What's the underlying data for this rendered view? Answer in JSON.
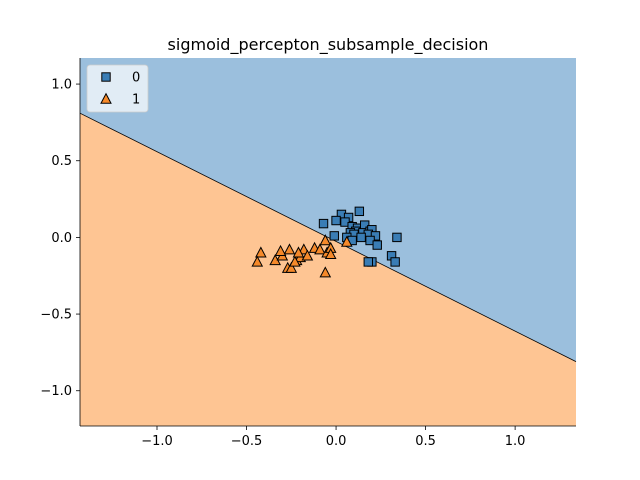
{
  "chart_data": {
    "type": "scatter",
    "title": "sigmoid_percepton_subsample_decision",
    "xlabel": "",
    "ylabel": "",
    "xlim": [
      -1.43,
      1.34
    ],
    "ylim": [
      -1.23,
      1.17
    ],
    "xticks": [
      -1.0,
      -0.5,
      0.0,
      0.5,
      1.0
    ],
    "xtick_labels": [
      "−1.0",
      "−0.5",
      "0.0",
      "0.5",
      "1.0"
    ],
    "yticks": [
      1.0,
      0.5,
      0.0,
      -0.5,
      -1.0
    ],
    "ytick_labels": [
      "1.0",
      "0.5",
      "0.0",
      "−0.5",
      "−1.0"
    ],
    "grid": false,
    "legend_position": "top-left",
    "decision_boundary": {
      "points": [
        [
          -1.43,
          0.81
        ],
        [
          1.34,
          -0.81
        ]
      ],
      "region_above_class": "0",
      "region_below_class": "1",
      "region_above_color": "#9bbfdd",
      "region_below_color": "#fec593"
    },
    "series": [
      {
        "name": "0",
        "marker": "square",
        "color": "#3a7db5",
        "points": [
          [
            -0.07,
            0.09
          ],
          [
            0.03,
            0.15
          ],
          [
            0.07,
            0.13
          ],
          [
            0.13,
            0.17
          ],
          [
            0.0,
            0.11
          ],
          [
            0.05,
            0.1
          ],
          [
            0.09,
            0.07
          ],
          [
            0.12,
            0.06
          ],
          [
            0.16,
            0.08
          ],
          [
            0.11,
            0.04
          ],
          [
            0.15,
            0.03
          ],
          [
            0.19,
            0.04
          ],
          [
            0.08,
            0.03
          ],
          [
            0.2,
            0.05
          ],
          [
            0.1,
            0.02
          ],
          [
            0.18,
            0.02
          ],
          [
            -0.01,
            0.01
          ],
          [
            0.06,
            0.0
          ],
          [
            0.14,
            0.0
          ],
          [
            0.22,
            0.01
          ],
          [
            0.09,
            -0.02
          ],
          [
            0.19,
            -0.02
          ],
          [
            0.23,
            -0.05
          ],
          [
            0.34,
            0.0
          ],
          [
            0.31,
            -0.12
          ],
          [
            0.33,
            -0.16
          ],
          [
            0.2,
            -0.16
          ],
          [
            0.18,
            -0.16
          ]
        ]
      },
      {
        "name": "1",
        "marker": "triangle",
        "color": "#f5892a",
        "points": [
          [
            -0.42,
            -0.1
          ],
          [
            -0.44,
            -0.16
          ],
          [
            -0.34,
            -0.15
          ],
          [
            -0.3,
            -0.12
          ],
          [
            -0.31,
            -0.09
          ],
          [
            -0.26,
            -0.08
          ],
          [
            -0.27,
            -0.2
          ],
          [
            -0.25,
            -0.2
          ],
          [
            -0.22,
            -0.15
          ],
          [
            -0.2,
            -0.13
          ],
          [
            -0.18,
            -0.08
          ],
          [
            -0.16,
            -0.12
          ],
          [
            -0.12,
            -0.07
          ],
          [
            -0.09,
            -0.08
          ],
          [
            -0.06,
            -0.02
          ],
          [
            -0.05,
            -0.1
          ],
          [
            -0.03,
            -0.07
          ],
          [
            -0.03,
            -0.11
          ],
          [
            -0.06,
            -0.23
          ],
          [
            0.06,
            -0.03
          ],
          [
            -0.23,
            -0.16
          ],
          [
            -0.21,
            -0.1
          ]
        ]
      }
    ]
  }
}
